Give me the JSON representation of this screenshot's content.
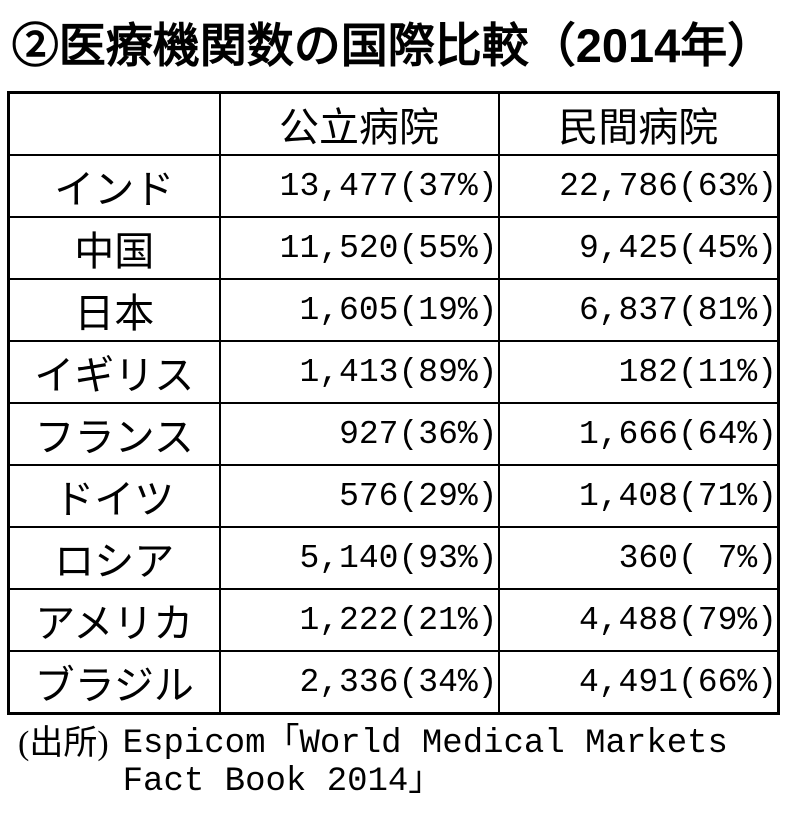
{
  "title": "②医療機関数の国際比較（2014年）",
  "table": {
    "headers": {
      "country": "",
      "public": "公立病院",
      "private": "民間病院"
    },
    "rows": [
      {
        "country": "インド",
        "public": "13,477(37%)",
        "private": "22,786(63%)"
      },
      {
        "country": "中国",
        "public": "11,520(55%)",
        "private": "9,425(45%)"
      },
      {
        "country": "日本",
        "public": "1,605(19%)",
        "private": "6,837(81%)"
      },
      {
        "country": "イギリス",
        "public": "1,413(89%)",
        "private": "182(11%)"
      },
      {
        "country": "フランス",
        "public": "927(36%)",
        "private": "1,666(64%)"
      },
      {
        "country": "ドイツ",
        "public": "576(29%)",
        "private": "1,408(71%)"
      },
      {
        "country": "ロシア",
        "public": "5,140(93%)",
        "private": "360( 7%)"
      },
      {
        "country": "アメリカ",
        "public": "1,222(21%)",
        "private": "4,488(79%)"
      },
      {
        "country": "ブラジル",
        "public": "2,336(34%)",
        "private": "4,491(66%)"
      }
    ]
  },
  "source": {
    "label": "(出所)",
    "line1": "Espicom「World Medical Markets",
    "line2": "Fact Book 2014」"
  },
  "colors": {
    "text": "#000000",
    "background": "#ffffff",
    "border": "#000000"
  },
  "chart_data": {
    "type": "table",
    "title": "②医療機関数の国際比較（2014年）",
    "columns": [
      "",
      "公立病院",
      "民間病院"
    ],
    "categories": [
      "インド",
      "中国",
      "日本",
      "イギリス",
      "フランス",
      "ドイツ",
      "ロシア",
      "アメリカ",
      "ブラジル"
    ],
    "series": [
      {
        "name": "公立病院",
        "values": [
          13477,
          11520,
          1605,
          1413,
          927,
          576,
          5140,
          1222,
          2336
        ],
        "percentages": [
          37,
          55,
          19,
          89,
          36,
          29,
          93,
          21,
          34
        ]
      },
      {
        "name": "民間病院",
        "values": [
          22786,
          9425,
          6837,
          182,
          1666,
          1408,
          360,
          4488,
          4491
        ],
        "percentages": [
          63,
          45,
          81,
          11,
          64,
          71,
          7,
          79,
          66
        ]
      }
    ],
    "source": "(出所) Espicom「World Medical Markets Fact Book 2014」"
  }
}
